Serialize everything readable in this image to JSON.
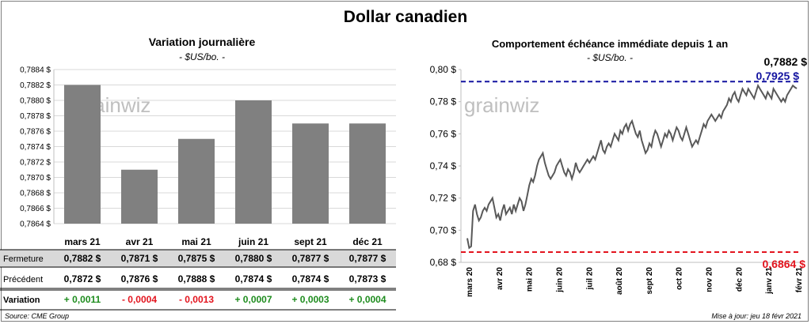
{
  "title": "Dollar canadien",
  "left": {
    "title": "Variation  journalière",
    "unit": "- $US/bo. -",
    "watermark": "grainwiz",
    "table": {
      "row_labels": {
        "close": "Fermeture",
        "prev": "Précédent",
        "change": "Variation"
      },
      "close": [
        "0,7882  $",
        "0,7871  $",
        "0,7875  $",
        "0,7880  $",
        "0,7877  $",
        "0,7877  $"
      ],
      "prev": [
        "0,7872  $",
        "0,7876  $",
        "0,7888  $",
        "0,7874  $",
        "0,7874  $",
        "0,7873  $"
      ],
      "change": [
        "+ 0,0011",
        "- 0,0004",
        "- 0,0013",
        "+ 0,0007",
        "+ 0,0003",
        "+ 0,0004"
      ]
    },
    "colors": {
      "positive": "#1e8c1e",
      "negative": "#e3141e",
      "bar": "#808080"
    }
  },
  "right": {
    "title": "Comportement échéance immédiate depuis 1 an",
    "unit": "- $US/bo. -",
    "watermark": "grainwiz",
    "last_value_label": "0,7882 $",
    "high_label": "0,7925 $",
    "low_label": "0,6864 $",
    "colors": {
      "high": "#1414a0",
      "low": "#e3141e",
      "line": "#595959"
    }
  },
  "footer": {
    "source": "Source: CME Group",
    "update": "Mise à jour: jeu 18 févr 2021"
  },
  "chart_data": [
    {
      "type": "bar",
      "categories": [
        "mars 21",
        "avr 21",
        "mai 21",
        "juin 21",
        "sept 21",
        "déc 21"
      ],
      "values": [
        0.7882,
        0.7871,
        0.7875,
        0.788,
        0.7877,
        0.7877
      ],
      "ylim": [
        0.7864,
        0.7884
      ],
      "yticks": [
        0.7864,
        0.7866,
        0.7868,
        0.787,
        0.7872,
        0.7874,
        0.7876,
        0.7878,
        0.788,
        0.7882,
        0.7884
      ],
      "ytick_labels": [
        "0,7864 $",
        "0,7866 $",
        "0,7868 $",
        "0,7870 $",
        "0,7872 $",
        "0,7874 $",
        "0,7876 $",
        "0,7878 $",
        "0,7880 $",
        "0,7882 $",
        "0,7884 $"
      ],
      "grid": true
    },
    {
      "type": "line",
      "ylim": [
        0.68,
        0.8
      ],
      "yticks": [
        0.68,
        0.7,
        0.72,
        0.74,
        0.76,
        0.78,
        0.8
      ],
      "ytick_labels": [
        "0,68 $",
        "0,70 $",
        "0,72 $",
        "0,74 $",
        "0,76 $",
        "0,78 $",
        "0,80 $"
      ],
      "x_labels": [
        "mars 20",
        "avr 20",
        "mai 20",
        "juin 20",
        "juil 20",
        "août 20",
        "sept 20",
        "oct 20",
        "nov 20",
        "déc 20",
        "janv 21",
        "févr 21"
      ],
      "reference_lines": [
        {
          "name": "high",
          "value": 0.7925
        },
        {
          "name": "low",
          "value": 0.6864
        }
      ],
      "series": [
        {
          "values": [
            0.695,
            0.689,
            0.69,
            0.712,
            0.716,
            0.71,
            0.706,
            0.708,
            0.712,
            0.714,
            0.712,
            0.716,
            0.718,
            0.72,
            0.714,
            0.708,
            0.71,
            0.706,
            0.712,
            0.716,
            0.71,
            0.712,
            0.714,
            0.71,
            0.716,
            0.712,
            0.716,
            0.72,
            0.718,
            0.712,
            0.716,
            0.722,
            0.728,
            0.732,
            0.73,
            0.734,
            0.74,
            0.744,
            0.746,
            0.748,
            0.742,
            0.738,
            0.734,
            0.732,
            0.734,
            0.736,
            0.74,
            0.742,
            0.744,
            0.74,
            0.736,
            0.734,
            0.738,
            0.736,
            0.732,
            0.736,
            0.742,
            0.738,
            0.736,
            0.738,
            0.74,
            0.742,
            0.744,
            0.742,
            0.744,
            0.746,
            0.744,
            0.748,
            0.752,
            0.756,
            0.75,
            0.748,
            0.752,
            0.754,
            0.752,
            0.756,
            0.76,
            0.758,
            0.756,
            0.762,
            0.76,
            0.764,
            0.766,
            0.762,
            0.766,
            0.768,
            0.764,
            0.76,
            0.758,
            0.762,
            0.756,
            0.752,
            0.748,
            0.75,
            0.754,
            0.752,
            0.758,
            0.762,
            0.76,
            0.756,
            0.752,
            0.756,
            0.76,
            0.758,
            0.762,
            0.76,
            0.756,
            0.76,
            0.764,
            0.762,
            0.758,
            0.756,
            0.76,
            0.764,
            0.76,
            0.756,
            0.752,
            0.754,
            0.756,
            0.754,
            0.758,
            0.762,
            0.766,
            0.764,
            0.768,
            0.77,
            0.772,
            0.77,
            0.768,
            0.77,
            0.772,
            0.77,
            0.774,
            0.776,
            0.778,
            0.782,
            0.78,
            0.784,
            0.786,
            0.782,
            0.78,
            0.784,
            0.788,
            0.786,
            0.784,
            0.788,
            0.786,
            0.784,
            0.782,
            0.786,
            0.79,
            0.788,
            0.786,
            0.784,
            0.782,
            0.786,
            0.784,
            0.782,
            0.788,
            0.786,
            0.784,
            0.782,
            0.78,
            0.782,
            0.78,
            0.784,
            0.786,
            0.788,
            0.79,
            0.789,
            0.7882
          ]
        }
      ],
      "grid": false
    }
  ]
}
